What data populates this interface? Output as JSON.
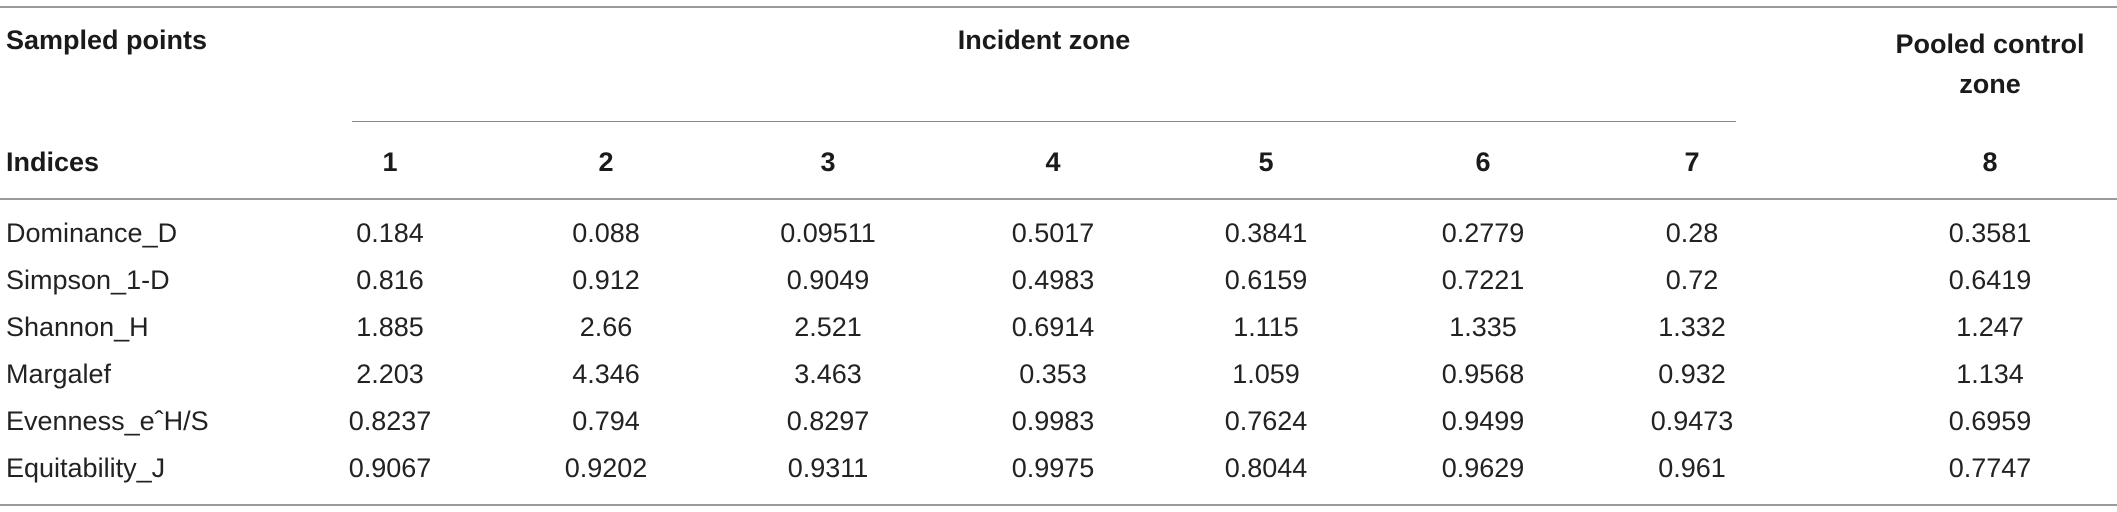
{
  "table": {
    "header": {
      "sampled_points": "Sampled points",
      "incident_zone": "Incident zone",
      "pooled_control_zone": "Pooled control zone",
      "indices": "Indices",
      "columns": [
        "1",
        "2",
        "3",
        "4",
        "5",
        "6",
        "7",
        "8"
      ]
    },
    "rows": [
      {
        "label": "Dominance_D",
        "values": [
          "0.184",
          "0.088",
          "0.09511",
          "0.5017",
          "0.3841",
          "0.2779",
          "0.28",
          "0.3581"
        ]
      },
      {
        "label": "Simpson_1-D",
        "values": [
          "0.816",
          "0.912",
          "0.9049",
          "0.4983",
          "0.6159",
          "0.7221",
          "0.72",
          "0.6419"
        ]
      },
      {
        "label": "Shannon_H",
        "values": [
          "1.885",
          "2.66",
          "2.521",
          "0.6914",
          "1.115",
          "1.335",
          "1.332",
          "1.247"
        ]
      },
      {
        "label": "Margalef",
        "values": [
          "2.203",
          "4.346",
          "3.463",
          "0.353",
          "1.059",
          "0.9568",
          "0.932",
          "1.134"
        ]
      },
      {
        "label": "Evenness_eˆH/S",
        "values": [
          "0.8237",
          "0.794",
          "0.8297",
          "0.9983",
          "0.7624",
          "0.9499",
          "0.9473",
          "0.6959"
        ]
      },
      {
        "label": "Equitability_J",
        "values": [
          "0.9067",
          "0.9202",
          "0.9311",
          "0.9975",
          "0.8044",
          "0.9629",
          "0.961",
          "0.7747"
        ]
      }
    ]
  }
}
